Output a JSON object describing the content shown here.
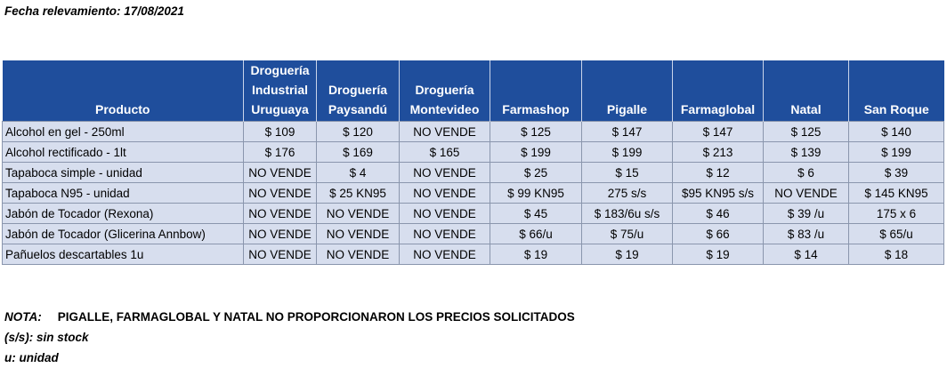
{
  "date_line": "Fecha relevamiento: 17/08/2021",
  "table": {
    "headers": [
      [
        "Producto"
      ],
      [
        "Droguería",
        "Industrial",
        "Uruguaya"
      ],
      [
        "Droguería",
        "Paysandú"
      ],
      [
        "Droguería",
        "Montevideo"
      ],
      [
        "Farmashop"
      ],
      [
        "Pigalle"
      ],
      [
        "Farmaglobal"
      ],
      [
        "Natal"
      ],
      [
        "San Roque"
      ]
    ],
    "rows": [
      [
        "Alcohol en gel  - 250ml",
        "$ 109",
        "$ 120",
        "NO VENDE",
        "$ 125",
        "$ 147",
        "$ 147",
        "$ 125",
        "$ 140"
      ],
      [
        "Alcohol rectificado - 1lt",
        "$ 176",
        "$ 169",
        "$ 165",
        "$ 199",
        "$ 199",
        "$ 213",
        "$ 139",
        "$ 199"
      ],
      [
        "Tapaboca simple - unidad",
        "NO VENDE",
        "$ 4",
        "NO VENDE",
        "$ 25",
        "$ 15",
        "$ 12",
        "$ 6",
        "$ 39"
      ],
      [
        "Tapaboca N95 - unidad",
        "NO VENDE",
        "$ 25  KN95",
        "NO VENDE",
        "$ 99  KN95",
        "275 s/s",
        "$95 KN95 s/s",
        "NO VENDE",
        "$ 145 KN95"
      ],
      [
        "Jabón de Tocador (Rexona)",
        "NO VENDE",
        "NO VENDE",
        "NO VENDE",
        "$ 45",
        "$ 183/6u s/s",
        "$ 46",
        "$ 39 /u",
        "175 x 6"
      ],
      [
        "Jabón de Tocador (Glicerina Annbow)",
        "NO VENDE",
        "NO VENDE",
        "NO VENDE",
        "$ 66/u",
        "$ 75/u",
        "$ 66",
        "$ 83 /u",
        "$ 65/u"
      ],
      [
        "Pañuelos descartables 1u",
        "NO VENDE",
        "NO VENDE",
        "NO VENDE",
        "$ 19",
        "$ 19",
        "$ 19",
        "$ 14",
        "$ 18"
      ]
    ]
  },
  "notes": {
    "nota_label": "NOTA:",
    "nota_text": "PIGALLE, FARMAGLOBAL Y NATAL NO PROPORCIONARON LOS PRECIOS SOLICITADOS",
    "ss": "(s/s): sin stock",
    "u": "u: unidad"
  }
}
